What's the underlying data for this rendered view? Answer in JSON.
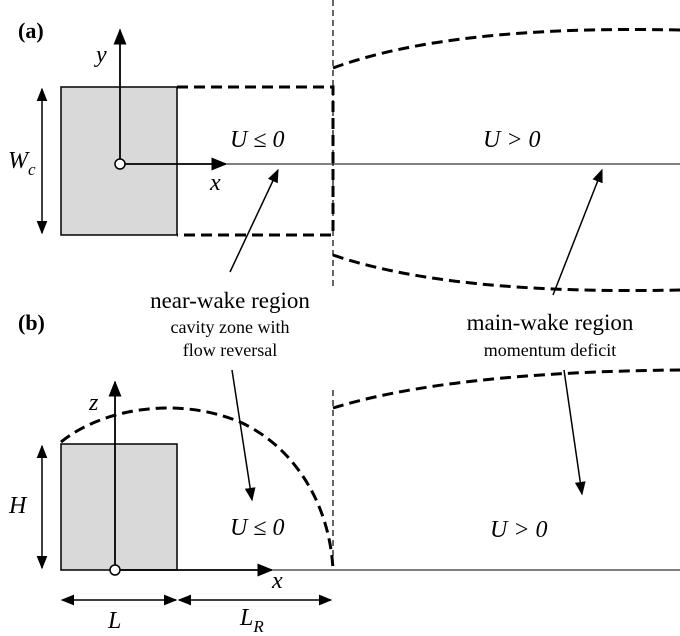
{
  "panels": {
    "a": {
      "label": "(a)",
      "axis_y": "y",
      "axis_x": "x",
      "width_sym": "W",
      "width_sub": "c",
      "near_flow": "U ≤ 0",
      "main_flow": "U > 0"
    },
    "b": {
      "label": "(b)",
      "axis_z": "z",
      "axis_x": "x",
      "height_sym": "H",
      "length_sym": "L",
      "reattach_sym": "L",
      "reattach_sub": "R",
      "near_flow": "U ≤ 0",
      "main_flow": "U > 0"
    }
  },
  "annotations": {
    "near_wake_title": "near-wake region",
    "near_wake_line1": "cavity zone with",
    "near_wake_line2": "flow reversal",
    "main_wake_title": "main-wake region",
    "main_wake_sub": "momentum deficit"
  },
  "colors": {
    "body_fill": "#d9d9d9",
    "stroke": "#000000"
  }
}
